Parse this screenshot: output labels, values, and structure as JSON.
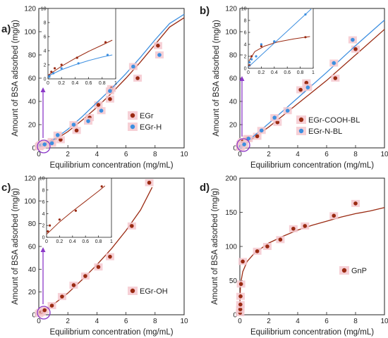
{
  "colors": {
    "brown": "#9a2a12",
    "blue": "#3d8fe0",
    "marker_halo": "#f4c8cf",
    "highlight_circle": "#8c38c8",
    "zoom_arrow": "#8c38c8",
    "axis": "#222222"
  },
  "chart_data": [
    {
      "id": "a",
      "label": "a)",
      "type": "scatter",
      "xlabel": "Equilibrium concentration (mg/mL)",
      "ylabel": "Amount of BSA adsorbed (mg/g)",
      "xlim": [
        0,
        10
      ],
      "ylim": [
        0,
        120
      ],
      "xticks": [
        0,
        2,
        4,
        6,
        8,
        10
      ],
      "yticks": [
        0,
        20,
        40,
        60,
        80,
        100,
        120
      ],
      "xticklabels": [
        "0",
        "2",
        "4",
        "6",
        "8",
        "10"
      ],
      "yticklabels": [
        "0",
        "20",
        "40",
        "60",
        "80",
        "100",
        "120"
      ],
      "legend_position": "bottom-right",
      "series": [
        {
          "name": "EGr",
          "color": "#9a2a12",
          "points": [
            [
              0.03,
              1
            ],
            [
              0.08,
              2
            ],
            [
              0.18,
              3
            ],
            [
              0.45,
              4
            ],
            [
              0.9,
              5.5
            ],
            [
              1.5,
              7
            ],
            [
              2.6,
              15
            ],
            [
              3.5,
              26
            ],
            [
              4.1,
              37
            ],
            [
              4.9,
              42
            ],
            [
              5.0,
              51
            ],
            [
              6.8,
              60
            ],
            [
              8.2,
              88
            ]
          ],
          "fit": [
            [
              0,
              0
            ],
            [
              1,
              6
            ],
            [
              2,
              14
            ],
            [
              3,
              24
            ],
            [
              4,
              35
            ],
            [
              5,
              47
            ],
            [
              6,
              60
            ],
            [
              7,
              74
            ],
            [
              8,
              89
            ],
            [
              9,
              104
            ],
            [
              10,
              112
            ]
          ]
        },
        {
          "name": "EGr-H",
          "color": "#3d8fe0",
          "points": [
            [
              0.02,
              1
            ],
            [
              0.1,
              2
            ],
            [
              0.2,
              2.5
            ],
            [
              0.4,
              3
            ],
            [
              0.9,
              4
            ],
            [
              1.3,
              11
            ],
            [
              2.4,
              20
            ],
            [
              3.4,
              23
            ],
            [
              4.3,
              32
            ],
            [
              4.9,
              49
            ],
            [
              6.5,
              70
            ],
            [
              8.3,
              80
            ]
          ],
          "fit": [
            [
              0,
              0
            ],
            [
              1,
              7
            ],
            [
              2,
              16
            ],
            [
              3,
              27
            ],
            [
              4,
              39
            ],
            [
              5,
              51
            ],
            [
              6,
              64
            ],
            [
              7,
              78
            ],
            [
              8,
              93
            ],
            [
              9,
              107
            ],
            [
              10,
              115
            ]
          ]
        }
      ],
      "inset": {
        "xlim": [
          0,
          1
        ],
        "ylim": [
          0,
          10
        ],
        "xticks": [
          0,
          0.2,
          0.4,
          0.6,
          0.8,
          1
        ],
        "yticks": [
          0,
          2,
          4,
          6,
          8,
          10
        ],
        "xticklabels": [
          "0",
          "0.2",
          "0.4",
          "0.6",
          "0.8",
          "1"
        ],
        "yticklabels": [
          "0",
          "2",
          "4",
          "6",
          "8",
          "10"
        ],
        "series": [
          {
            "name": "EGr",
            "color": "#9a2a12",
            "points": [
              [
                0.02,
                0.5
              ],
              [
                0.05,
                1
              ],
              [
                0.1,
                1.5
              ],
              [
                0.2,
                2
              ],
              [
                0.43,
                3
              ],
              [
                0.85,
                5.2
              ]
            ],
            "fit": [
              [
                0,
                0.5
              ],
              [
                0.2,
                1.8
              ],
              [
                0.4,
                2.9
              ],
              [
                0.6,
                3.9
              ],
              [
                0.8,
                4.8
              ],
              [
                0.95,
                5.5
              ]
            ]
          },
          {
            "name": "EGr-H",
            "color": "#3d8fe0",
            "points": [
              [
                0.02,
                0.3
              ],
              [
                0.08,
                0.8
              ],
              [
                0.2,
                1.5
              ],
              [
                0.45,
                2.2
              ],
              [
                0.88,
                3.4
              ]
            ],
            "fit": [
              [
                0,
                0.4
              ],
              [
                0.2,
                1.3
              ],
              [
                0.4,
                2
              ],
              [
                0.6,
                2.6
              ],
              [
                0.8,
                3.1
              ],
              [
                0.95,
                3.4
              ]
            ]
          }
        ]
      }
    },
    {
      "id": "b",
      "label": "b)",
      "type": "scatter",
      "xlabel": "Equilibrium concentration (mg/mL)",
      "ylabel": "Amount of BSA adsorbed (mg/g)",
      "xlim": [
        0,
        10
      ],
      "ylim": [
        0,
        120
      ],
      "xticks": [
        0,
        2,
        4,
        6,
        8,
        10
      ],
      "yticks": [
        0,
        20,
        40,
        60,
        80,
        100,
        120
      ],
      "xticklabels": [
        "0",
        "2",
        "4",
        "6",
        "8",
        "10"
      ],
      "yticklabels": [
        "0",
        "20",
        "40",
        "60",
        "80",
        "100",
        "120"
      ],
      "legend_position": "bottom-right",
      "series": [
        {
          "name": "EGr-COOH-BL",
          "color": "#9a2a12",
          "points": [
            [
              0.02,
              1
            ],
            [
              0.05,
              3
            ],
            [
              0.1,
              4
            ],
            [
              0.2,
              5.5
            ],
            [
              0.5,
              8
            ],
            [
              1.2,
              10
            ],
            [
              2.6,
              22
            ],
            [
              4.2,
              50
            ],
            [
              4.6,
              56
            ],
            [
              6.6,
              60
            ],
            [
              8,
              85
            ]
          ],
          "fit": [
            [
              0,
              0
            ],
            [
              2,
              18
            ],
            [
              4,
              38
            ],
            [
              6,
              58
            ],
            [
              8,
              80
            ],
            [
              10,
              102
            ]
          ]
        },
        {
          "name": "EGr-N-BL",
          "color": "#3d8fe0",
          "points": [
            [
              0.02,
              0.5
            ],
            [
              0.1,
              1.5
            ],
            [
              0.3,
              3
            ],
            [
              0.6,
              8
            ],
            [
              1.5,
              15
            ],
            [
              2.4,
              26
            ],
            [
              3.3,
              32
            ],
            [
              4.7,
              52
            ],
            [
              6.5,
              73
            ],
            [
              7.8,
              93
            ]
          ],
          "fit": [
            [
              0,
              0
            ],
            [
              2,
              21
            ],
            [
              4,
              43
            ],
            [
              6,
              65
            ],
            [
              8,
              88
            ],
            [
              10,
              110
            ]
          ]
        }
      ],
      "inset": {
        "xlim": [
          0,
          1
        ],
        "ylim": [
          0,
          10
        ],
        "xticks": [
          0,
          0.2,
          0.4,
          0.6,
          0.8,
          1
        ],
        "yticks": [
          0,
          2,
          4,
          6,
          8,
          10
        ],
        "xticklabels": [
          "0",
          "0.2",
          "0.4",
          "0.6",
          "0.8",
          "1"
        ],
        "yticklabels": [
          "0",
          "2",
          "4",
          "6",
          "8",
          "10"
        ],
        "series": [
          {
            "name": "EGr-COOH-BL",
            "color": "#9a2a12",
            "points": [
              [
                0.02,
                0.5
              ],
              [
                0.05,
                2
              ],
              [
                0.2,
                3.7
              ],
              [
                0.4,
                4.4
              ],
              [
                0.88,
                5.2
              ]
            ],
            "fit": [
              [
                0.01,
                1.2
              ],
              [
                0.1,
                2.8
              ],
              [
                0.25,
                3.7
              ],
              [
                0.45,
                4.4
              ],
              [
                0.7,
                4.9
              ],
              [
                0.95,
                5.3
              ]
            ]
          },
          {
            "name": "EGr-N-BL",
            "color": "#3d8fe0",
            "points": [
              [
                0.02,
                1
              ],
              [
                0.05,
                1.5
              ],
              [
                0.12,
                2
              ],
              [
                0.2,
                4
              ],
              [
                0.4,
                4.5
              ],
              [
                0.88,
                9
              ]
            ],
            "fit": [
              [
                0,
                0.2
              ],
              [
                0.2,
                2.2
              ],
              [
                0.4,
                4.2
              ],
              [
                0.6,
                6.2
              ],
              [
                0.8,
                8.2
              ],
              [
                0.97,
                9.9
              ]
            ]
          }
        ]
      }
    },
    {
      "id": "c",
      "label": "c)",
      "type": "scatter",
      "xlabel": "Equilibrium concentration (mg/mL)",
      "ylabel": "Amount of BSA adsorbed (mg/g)",
      "xlim": [
        0,
        10
      ],
      "ylim": [
        0,
        120
      ],
      "xticks": [
        0,
        2,
        4,
        6,
        8,
        10
      ],
      "yticks": [
        0,
        20,
        40,
        60,
        80,
        100,
        120
      ],
      "xticklabels": [
        "0",
        "2",
        "4",
        "6",
        "8",
        "10"
      ],
      "yticklabels": [
        "0",
        "20",
        "40",
        "60",
        "80",
        "100",
        "120"
      ],
      "legend_position": "right",
      "series": [
        {
          "name": "EGr-OH",
          "color": "#9a2a12",
          "points": [
            [
              0.02,
              1
            ],
            [
              0.1,
              2
            ],
            [
              0.2,
              2.5
            ],
            [
              0.4,
              4
            ],
            [
              0.9,
              8
            ],
            [
              1.6,
              16
            ],
            [
              2.4,
              26
            ],
            [
              3.2,
              34
            ],
            [
              4.1,
              42
            ],
            [
              4.9,
              51
            ],
            [
              6.4,
              78
            ],
            [
              7.6,
              116
            ]
          ],
          "fit": [
            [
              0,
              0
            ],
            [
              1,
              9
            ],
            [
              2,
              19
            ],
            [
              3,
              31
            ],
            [
              4,
              44
            ],
            [
              5,
              58
            ],
            [
              6,
              74
            ],
            [
              7,
              92
            ],
            [
              7.8,
              112
            ]
          ]
        }
      ],
      "inset": {
        "xlim": [
          0,
          1
        ],
        "ylim": [
          0,
          10
        ],
        "xticks": [
          0,
          0.2,
          0.4,
          0.6,
          0.8,
          1
        ],
        "yticks": [
          0,
          2,
          4,
          6,
          8,
          10
        ],
        "xticklabels": [
          "0",
          "0.2",
          "0.4",
          "0.6",
          "0.8",
          "1"
        ],
        "yticklabels": [
          "0",
          "2",
          "4",
          "6",
          "8",
          "10"
        ],
        "series": [
          {
            "name": "EGr-OH",
            "color": "#9a2a12",
            "points": [
              [
                0.02,
                1
              ],
              [
                0.05,
                2
              ],
              [
                0.2,
                3
              ],
              [
                0.45,
                4.5
              ],
              [
                0.85,
                8.6
              ]
            ],
            "fit": [
              [
                0,
                0.5
              ],
              [
                0.2,
                2.6
              ],
              [
                0.4,
                4.4
              ],
              [
                0.6,
                6.1
              ],
              [
                0.8,
                7.8
              ],
              [
                0.9,
                8.7
              ]
            ]
          }
        ]
      }
    },
    {
      "id": "d",
      "label": "d)",
      "type": "scatter",
      "xlabel": "Equilibrium concentration (mg/mL)",
      "ylabel": "Amount of BSA adsorbed (mg/g)",
      "xlim": [
        0,
        10
      ],
      "ylim": [
        0,
        200
      ],
      "xticks": [
        0,
        2,
        4,
        6,
        8,
        10
      ],
      "yticks": [
        0,
        50,
        100,
        150,
        200
      ],
      "xticklabels": [
        "0",
        "2",
        "4",
        "6",
        "8",
        "10"
      ],
      "yticklabels": [
        "0",
        "50",
        "100",
        "150",
        "200"
      ],
      "legend_position": "right",
      "series": [
        {
          "name": "GnP",
          "color": "#9a2a12",
          "points": [
            [
              0.02,
              3
            ],
            [
              0.03,
              8
            ],
            [
              0.04,
              15
            ],
            [
              0.05,
              27
            ],
            [
              0.08,
              45
            ],
            [
              0.2,
              78
            ],
            [
              1.2,
              93
            ],
            [
              1.9,
              100
            ],
            [
              2.8,
              110
            ],
            [
              3.7,
              126
            ],
            [
              4.5,
              130
            ],
            [
              6.5,
              145
            ],
            [
              8,
              163
            ]
          ],
          "fit": [
            [
              0.005,
              20
            ],
            [
              0.05,
              45
            ],
            [
              0.2,
              63
            ],
            [
              0.5,
              78
            ],
            [
              1,
              90
            ],
            [
              2,
              105
            ],
            [
              3,
              115
            ],
            [
              4,
              124
            ],
            [
              5,
              131
            ],
            [
              6,
              137
            ],
            [
              7,
              143
            ],
            [
              8,
              148
            ],
            [
              9,
              152
            ],
            [
              10,
              157
            ]
          ]
        }
      ]
    }
  ]
}
